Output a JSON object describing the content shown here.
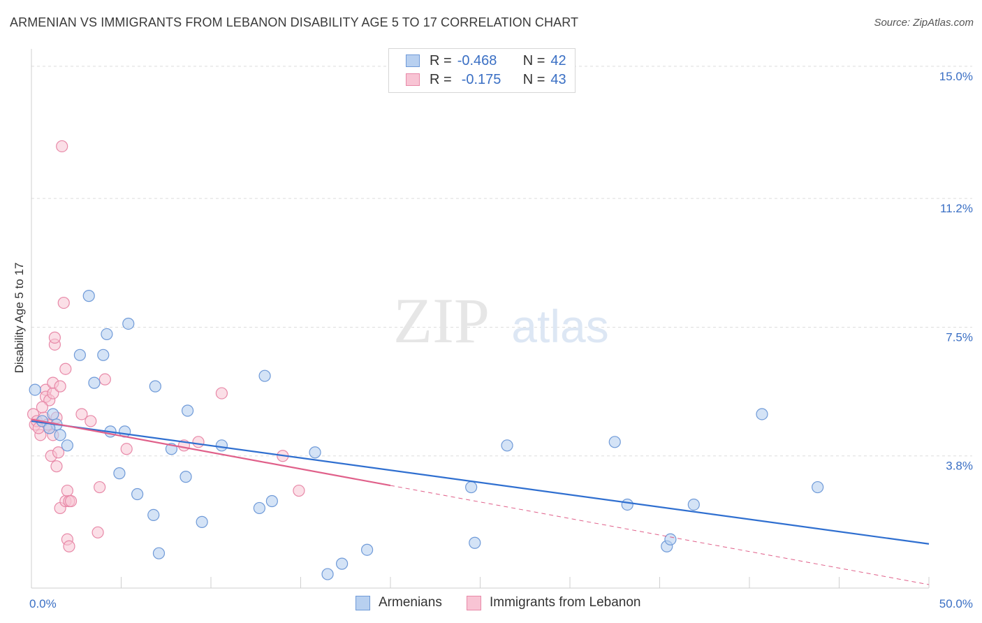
{
  "title": "ARMENIAN VS IMMIGRANTS FROM LEBANON DISABILITY AGE 5 TO 17 CORRELATION CHART",
  "source": "Source: ZipAtlas.com",
  "watermark": {
    "zip": "ZIP",
    "atlas": "atlas"
  },
  "colors": {
    "armenians_fill": "#b8d0f0",
    "armenians_stroke": "#6f9ad8",
    "armenians_line": "#2f6fd0",
    "lebanon_fill": "#f8c4d4",
    "lebanon_stroke": "#e889a8",
    "lebanon_line": "#e0608a",
    "tick_label": "#3a6fc4",
    "grid": "#dddddd"
  },
  "legend": {
    "rows": [
      {
        "r_label": "R =",
        "r_value": "-0.468",
        "n_label": "N =",
        "n_value": "42"
      },
      {
        "r_label": "R =",
        "r_value": "-0.175",
        "n_label": "N =",
        "n_value": "43"
      }
    ]
  },
  "bottom_legend": {
    "armenians": "Armenians",
    "lebanon": "Immigrants from Lebanon"
  },
  "chart_data": {
    "type": "scatter",
    "ylabel": "Disability Age 5 to 17",
    "xlim": [
      0,
      50
    ],
    "ylim": [
      0,
      15.5
    ],
    "x_tick_labels": {
      "left": "0.0%",
      "right": "50.0%"
    },
    "y_ticks": [
      {
        "value": 3.8,
        "label": "3.8%"
      },
      {
        "value": 7.5,
        "label": "7.5%"
      },
      {
        "value": 11.2,
        "label": "11.2%"
      },
      {
        "value": 15.0,
        "label": "15.0%"
      }
    ],
    "grid": true,
    "series": [
      {
        "name": "Armenians",
        "points": [
          [
            0.2,
            5.7
          ],
          [
            1.2,
            5.0
          ],
          [
            1.4,
            4.7
          ],
          [
            1.6,
            4.4
          ],
          [
            2.0,
            4.1
          ],
          [
            2.7,
            6.7
          ],
          [
            3.2,
            8.4
          ],
          [
            3.5,
            5.9
          ],
          [
            4.0,
            6.7
          ],
          [
            4.2,
            7.3
          ],
          [
            4.4,
            4.5
          ],
          [
            4.9,
            3.3
          ],
          [
            5.2,
            4.5
          ],
          [
            5.4,
            7.6
          ],
          [
            5.9,
            2.7
          ],
          [
            6.8,
            2.1
          ],
          [
            6.9,
            5.8
          ],
          [
            7.1,
            1.0
          ],
          [
            7.8,
            4.0
          ],
          [
            8.6,
            3.2
          ],
          [
            8.7,
            5.1
          ],
          [
            9.5,
            1.9
          ],
          [
            10.6,
            4.1
          ],
          [
            12.7,
            2.3
          ],
          [
            13.0,
            6.1
          ],
          [
            13.4,
            2.5
          ],
          [
            15.8,
            3.9
          ],
          [
            16.5,
            0.4
          ],
          [
            17.3,
            0.7
          ],
          [
            18.7,
            1.1
          ],
          [
            24.5,
            2.9
          ],
          [
            24.7,
            1.3
          ],
          [
            26.5,
            4.1
          ],
          [
            32.5,
            4.2
          ],
          [
            33.2,
            2.4
          ],
          [
            35.4,
            1.2
          ],
          [
            35.6,
            1.4
          ],
          [
            36.9,
            2.4
          ],
          [
            40.7,
            5.0
          ],
          [
            43.8,
            2.9
          ],
          [
            0.6,
            4.8
          ],
          [
            1.0,
            4.6
          ]
        ]
      },
      {
        "name": "Immigrants from Lebanon",
        "points": [
          [
            0.1,
            5.0
          ],
          [
            0.2,
            4.7
          ],
          [
            0.3,
            4.8
          ],
          [
            0.5,
            4.4
          ],
          [
            0.7,
            4.9
          ],
          [
            0.8,
            5.7
          ],
          [
            0.8,
            5.5
          ],
          [
            1.0,
            5.4
          ],
          [
            1.0,
            4.6
          ],
          [
            1.1,
            3.8
          ],
          [
            1.2,
            4.4
          ],
          [
            1.2,
            5.6
          ],
          [
            1.2,
            5.9
          ],
          [
            1.3,
            7.0
          ],
          [
            1.3,
            7.2
          ],
          [
            1.4,
            3.5
          ],
          [
            1.5,
            3.9
          ],
          [
            1.6,
            5.8
          ],
          [
            1.6,
            2.3
          ],
          [
            1.7,
            12.7
          ],
          [
            1.8,
            8.2
          ],
          [
            1.9,
            2.5
          ],
          [
            1.9,
            6.3
          ],
          [
            2.0,
            2.8
          ],
          [
            2.0,
            1.4
          ],
          [
            2.1,
            1.2
          ],
          [
            2.1,
            2.5
          ],
          [
            2.2,
            2.5
          ],
          [
            2.8,
            5.0
          ],
          [
            3.3,
            4.8
          ],
          [
            3.7,
            1.6
          ],
          [
            3.8,
            2.9
          ],
          [
            4.1,
            6.0
          ],
          [
            5.3,
            4.0
          ],
          [
            8.5,
            4.1
          ],
          [
            9.3,
            4.2
          ],
          [
            10.6,
            5.6
          ],
          [
            14.0,
            3.8
          ],
          [
            14.9,
            2.8
          ],
          [
            0.4,
            4.6
          ],
          [
            0.6,
            5.2
          ],
          [
            0.9,
            4.7
          ],
          [
            1.4,
            4.9
          ]
        ]
      }
    ],
    "trend_lines": [
      {
        "series": "Armenians",
        "x": [
          0,
          50
        ],
        "y": [
          4.8,
          1.27
        ]
      },
      {
        "series": "Immigrants from Lebanon",
        "x_solid": [
          0,
          20
        ],
        "y_solid": [
          4.85,
          2.95
        ],
        "x_dashed": [
          20,
          50
        ],
        "y_dashed": [
          2.95,
          0.1
        ]
      }
    ]
  }
}
